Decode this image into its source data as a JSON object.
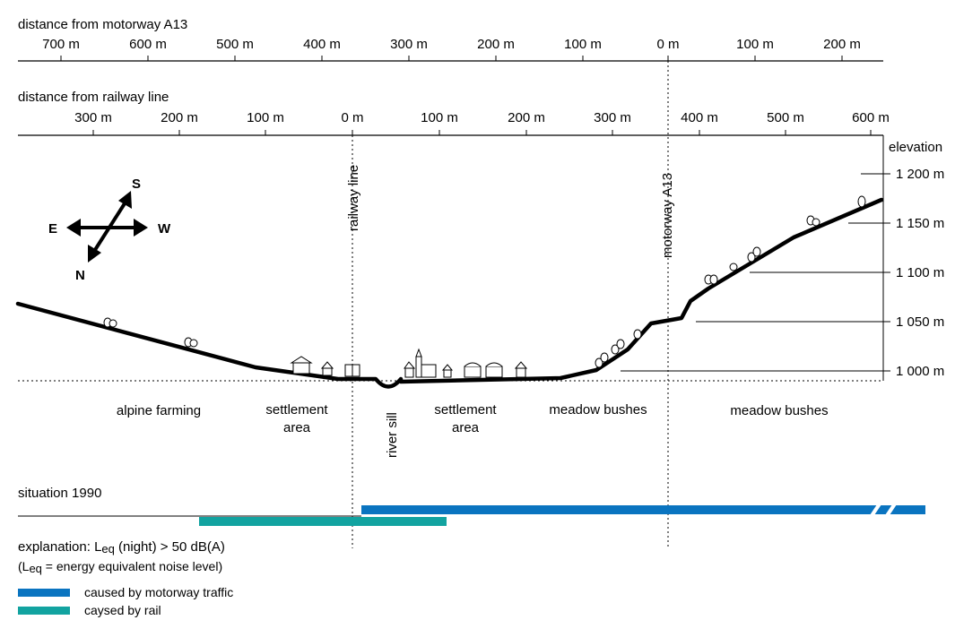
{
  "top_axis": {
    "title": "distance from motorway A13",
    "ticks": [
      "700 m",
      "600 m",
      "500 m",
      "400 m",
      "300 m",
      "200 m",
      "100 m",
      "0 m",
      "100 m",
      "200 m"
    ]
  },
  "rail_axis": {
    "title": "distance from railway line",
    "ticks": [
      "300 m",
      "200 m",
      "100 m",
      "0 m",
      "100 m",
      "200 m",
      "300 m",
      "400 m",
      "500 m",
      "600 m"
    ]
  },
  "elevation": {
    "title": "elevation",
    "ticks": [
      "1 200 m",
      "1 150 m",
      "1 100 m",
      "1 050 m",
      "1 000 m"
    ]
  },
  "compass": {
    "north": "N",
    "south": "S",
    "east": "E",
    "west": "W"
  },
  "markers": {
    "railway": "railway line",
    "motorway": "motorway A13"
  },
  "zones": {
    "alpine_farming": "alpine farming",
    "settlement_left_1": "settlement",
    "settlement_left_2": "area",
    "river_sill": "river sill",
    "settlement_right_1": "settlement",
    "settlement_right_2": "area",
    "meadow_bushes_1": "meadow bushes",
    "meadow_bushes_2": "meadow bushes"
  },
  "situation": {
    "label": "situation 1990"
  },
  "explanation": {
    "line1_prefix": "explanation: L",
    "line1_sub": "eq",
    "line1_suffix": " (night) > 50 dB(A)",
    "line2_prefix": "(L",
    "line2_sub": "eq",
    "line2_suffix": " = energy  equivalent noise level)"
  },
  "legend": {
    "motorway": {
      "label": "caused by motorway traffic",
      "color": "#0a74c0"
    },
    "rail": {
      "label": "caysed by rail",
      "color": "#12a3a0"
    }
  }
}
